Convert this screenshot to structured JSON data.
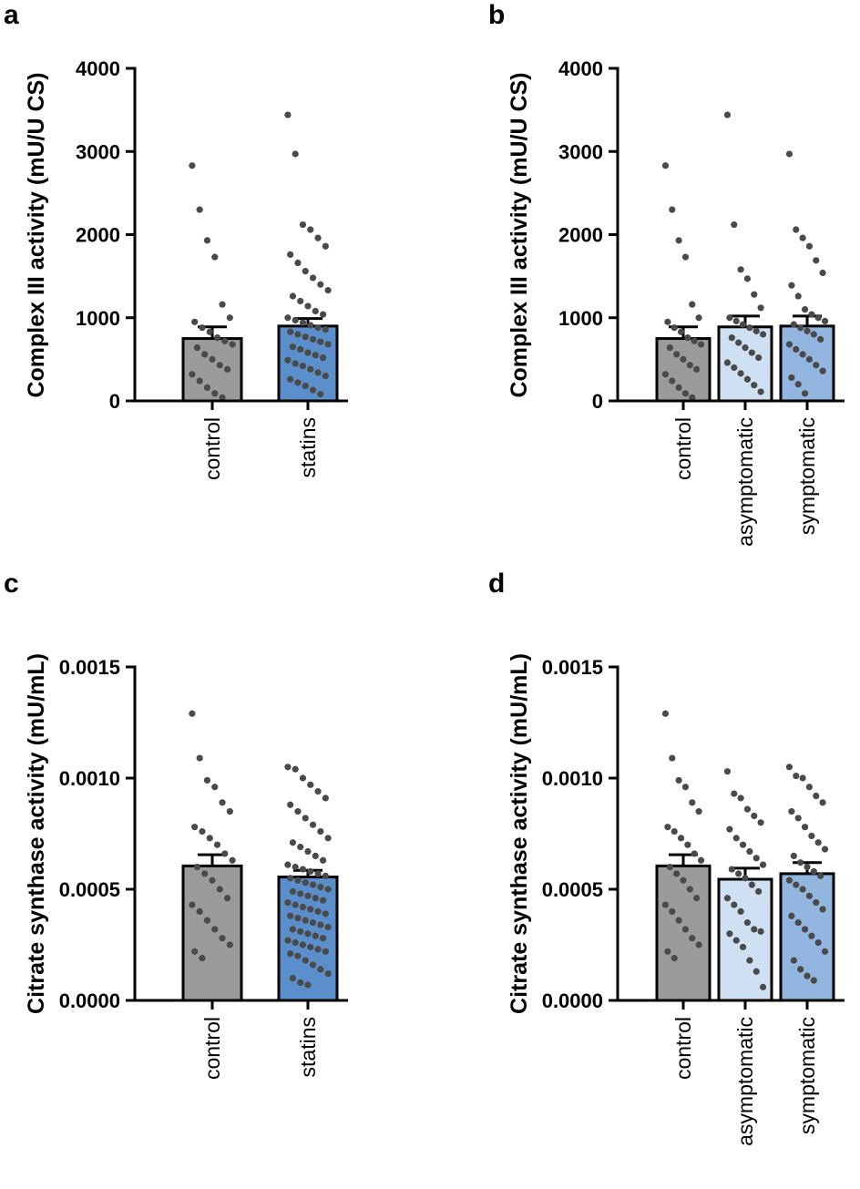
{
  "colors": {
    "control": "#9b9b9b",
    "statins": "#5b8fcb",
    "asymptomatic": "#cfe0f3",
    "symptomatic": "#93b6e0",
    "points": "#4a4a4a",
    "axis": "#000000"
  },
  "chart_data": [
    {
      "panel": "a",
      "type": "bar",
      "ylabel": "Complex III activity (mU/U CS)",
      "ylim": [
        0,
        4000
      ],
      "yticks": [
        "0",
        "1000",
        "2000",
        "3000",
        "4000"
      ],
      "ytick_values": [
        0,
        1000,
        2000,
        3000,
        4000
      ],
      "categories": [
        "control",
        "statins"
      ],
      "values": [
        750,
        900
      ],
      "sem": [
        140,
        90
      ],
      "points": [
        [
          2830,
          2300,
          1930,
          1730,
          1160,
          1000,
          950,
          880,
          830,
          760,
          720,
          680,
          640,
          560,
          500,
          430,
          380,
          320,
          240,
          160,
          90,
          40
        ],
        [
          3440,
          2970,
          2120,
          2060,
          1960,
          1860,
          1760,
          1660,
          1560,
          1480,
          1400,
          1330,
          1260,
          1200,
          1140,
          1080,
          1040,
          1000,
          970,
          940,
          910,
          880,
          860,
          830,
          800,
          770,
          740,
          710,
          680,
          650,
          620,
          580,
          550,
          520,
          490,
          450,
          420,
          380,
          340,
          300,
          260,
          220,
          180,
          130,
          80
        ]
      ]
    },
    {
      "panel": "b",
      "type": "bar",
      "ylabel": "Complex III activity (mU/U CS)",
      "ylim": [
        0,
        4000
      ],
      "yticks": [
        "0",
        "1000",
        "2000",
        "3000",
        "4000"
      ],
      "ytick_values": [
        0,
        1000,
        2000,
        3000,
        4000
      ],
      "categories": [
        "control",
        "asymptomatic",
        "symptomatic"
      ],
      "values": [
        750,
        890,
        900
      ],
      "sem": [
        140,
        130,
        120
      ],
      "points": [
        [
          2830,
          2300,
          1930,
          1730,
          1160,
          1000,
          950,
          880,
          830,
          760,
          720,
          680,
          640,
          560,
          500,
          430,
          380,
          320,
          240,
          160,
          90,
          40
        ],
        [
          3440,
          2120,
          1580,
          1470,
          1280,
          1120,
          1000,
          960,
          920,
          880,
          840,
          800,
          760,
          700,
          640,
          580,
          520,
          460,
          400,
          330,
          260,
          190,
          110
        ],
        [
          2970,
          2060,
          1960,
          1860,
          1690,
          1540,
          1390,
          1260,
          1100,
          1040,
          1000,
          960,
          920,
          880,
          840,
          800,
          740,
          680,
          620,
          560,
          500,
          430,
          360,
          280,
          200,
          90
        ]
      ]
    },
    {
      "panel": "c",
      "type": "bar",
      "ylabel": "Citrate synthase activity (mU/mL)",
      "ylim": [
        0,
        0.0015
      ],
      "yticks": [
        "0.0000",
        "0.0005",
        "0.0010",
        "0.0015"
      ],
      "ytick_values": [
        0,
        0.0005,
        0.001,
        0.0015
      ],
      "categories": [
        "control",
        "statins"
      ],
      "values": [
        0.000605,
        0.000555
      ],
      "sem": [
        5e-05,
        3e-05
      ],
      "points": [
        [
          0.00129,
          0.00109,
          0.00099,
          0.00096,
          0.00089,
          0.00085,
          0.00078,
          0.00076,
          0.00073,
          0.0007,
          0.00066,
          0.00063,
          0.0006,
          0.00057,
          0.00054,
          0.0005,
          0.00046,
          0.00043,
          0.0004,
          0.00036,
          0.00032,
          0.00028,
          0.00025,
          0.00022,
          0.00019
        ],
        [
          0.00105,
          0.00104,
          0.001,
          0.00097,
          0.00094,
          0.00091,
          0.00088,
          0.00085,
          0.00082,
          0.00079,
          0.00076,
          0.00073,
          0.00071,
          0.00069,
          0.00067,
          0.00065,
          0.00063,
          0.00061,
          0.0006,
          0.00059,
          0.00058,
          0.00057,
          0.00056,
          0.00055,
          0.00054,
          0.00053,
          0.00052,
          0.00051,
          0.0005,
          0.00049,
          0.00048,
          0.00047,
          0.00046,
          0.00045,
          0.00044,
          0.00043,
          0.00042,
          0.00041,
          0.0004,
          0.00039,
          0.00038,
          0.00037,
          0.00036,
          0.00035,
          0.00034,
          0.00033,
          0.00032,
          0.00031,
          0.0003,
          0.00029,
          0.00028,
          0.00027,
          0.00026,
          0.00025,
          0.00024,
          0.00023,
          0.00022,
          0.00021,
          0.0002,
          0.00018,
          0.00016,
          0.00014,
          0.00012,
          0.0001,
          8e-05,
          7e-05
        ]
      ]
    },
    {
      "panel": "d",
      "type": "bar",
      "ylabel": "Citrate synthase activity (mU/mL)",
      "ylim": [
        0,
        0.0015
      ],
      "yticks": [
        "0.0000",
        "0.0005",
        "0.0010",
        "0.0015"
      ],
      "ytick_values": [
        0,
        0.0005,
        0.001,
        0.0015
      ],
      "categories": [
        "control",
        "asymptomatic",
        "symptomatic"
      ],
      "values": [
        0.000605,
        0.000545,
        0.00057
      ],
      "sem": [
        5e-05,
        5e-05,
        5e-05
      ],
      "points": [
        [
          0.00129,
          0.00109,
          0.00099,
          0.00096,
          0.00089,
          0.00085,
          0.00078,
          0.00076,
          0.00073,
          0.0007,
          0.00066,
          0.00063,
          0.0006,
          0.00057,
          0.00054,
          0.0005,
          0.00046,
          0.00043,
          0.0004,
          0.00036,
          0.00032,
          0.00028,
          0.00025,
          0.00022,
          0.00019
        ],
        [
          0.00103,
          0.00093,
          0.00091,
          0.00086,
          0.00083,
          0.0008,
          0.00077,
          0.00073,
          0.0007,
          0.00067,
          0.00064,
          0.00061,
          0.00059,
          0.00057,
          0.00055,
          0.00052,
          0.00049,
          0.00046,
          0.00043,
          0.0004,
          0.00035,
          0.00032,
          0.00031,
          0.0003,
          0.00027,
          0.00024,
          0.00018,
          0.00013,
          6e-05
        ],
        [
          0.00105,
          0.00101,
          0.001,
          0.00096,
          0.00092,
          0.00089,
          0.00085,
          0.00082,
          0.00078,
          0.00074,
          0.00071,
          0.00068,
          0.00065,
          0.00062,
          0.0006,
          0.00058,
          0.00056,
          0.00054,
          0.00052,
          0.0005,
          0.00047,
          0.00044,
          0.00041,
          0.00038,
          0.00035,
          0.00032,
          0.00029,
          0.00026,
          0.00022,
          0.00018,
          0.00014,
          0.00011,
          9e-05
        ]
      ]
    }
  ]
}
